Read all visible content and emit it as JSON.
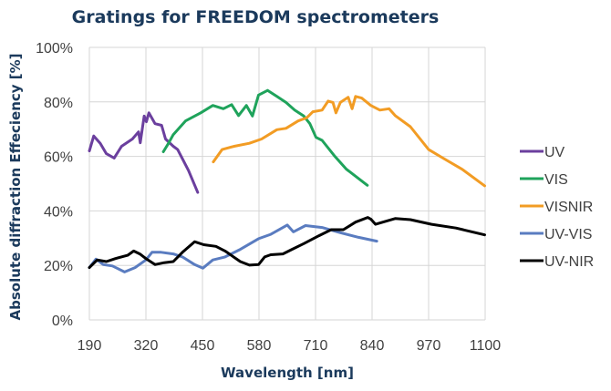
{
  "chart_data": {
    "type": "line",
    "title": "Gratings for FREEDOM spectrometers",
    "xlabel": "Wavelength [nm]",
    "ylabel": "Absolute diffraction Effeciency [%]",
    "xlim": [
      190,
      1100
    ],
    "ylim": [
      0,
      100
    ],
    "xticks": [
      "190",
      "320",
      "450",
      "580",
      "710",
      "840",
      "970",
      "1100"
    ],
    "yticks": [
      "0%",
      "20%",
      "40%",
      "60%",
      "80%",
      "100%"
    ],
    "grid": true,
    "legend_position": "right",
    "series": [
      {
        "name": "UV",
        "color": "#6b3f9e",
        "points": [
          [
            190,
            62
          ],
          [
            200,
            67.5
          ],
          [
            215,
            64.8
          ],
          [
            229,
            61
          ],
          [
            247,
            59.4
          ],
          [
            264,
            63.7
          ],
          [
            289,
            66.4
          ],
          [
            303,
            69
          ],
          [
            307,
            65
          ],
          [
            316,
            74.8
          ],
          [
            321,
            72.7
          ],
          [
            327,
            76
          ],
          [
            341,
            72
          ],
          [
            356,
            71.4
          ],
          [
            365,
            66.4
          ],
          [
            383,
            63.7
          ],
          [
            393,
            62.5
          ],
          [
            418,
            54.8
          ],
          [
            439,
            46.8
          ]
        ]
      },
      {
        "name": "VIS",
        "color": "#1fa35b",
        "points": [
          [
            360,
            61.7
          ],
          [
            372,
            64.8
          ],
          [
            383,
            68
          ],
          [
            411,
            73
          ],
          [
            446,
            76
          ],
          [
            474,
            78.7
          ],
          [
            498,
            77.5
          ],
          [
            517,
            79
          ],
          [
            533,
            75
          ],
          [
            551,
            78.7
          ],
          [
            565,
            74.8
          ],
          [
            579,
            82.5
          ],
          [
            600,
            84.2
          ],
          [
            621,
            82
          ],
          [
            642,
            79.8
          ],
          [
            662,
            77
          ],
          [
            683,
            74.8
          ],
          [
            697,
            72
          ],
          [
            711,
            67
          ],
          [
            725,
            65.9
          ],
          [
            753,
            60.3
          ],
          [
            781,
            55.3
          ],
          [
            829,
            49.4
          ]
        ]
      },
      {
        "name": "VISNIR",
        "color": "#f29c24",
        "points": [
          [
            475,
            58
          ],
          [
            495,
            62.5
          ],
          [
            523,
            63.7
          ],
          [
            558,
            64.8
          ],
          [
            586,
            66.4
          ],
          [
            621,
            69.8
          ],
          [
            642,
            70.3
          ],
          [
            670,
            73
          ],
          [
            690,
            74.2
          ],
          [
            704,
            76.4
          ],
          [
            725,
            77
          ],
          [
            739,
            80.3
          ],
          [
            750,
            79.8
          ],
          [
            757,
            76
          ],
          [
            767,
            79.8
          ],
          [
            785,
            81.7
          ],
          [
            794,
            77.5
          ],
          [
            802,
            82
          ],
          [
            816,
            81.4
          ],
          [
            837,
            78.7
          ],
          [
            858,
            77
          ],
          [
            879,
            77.5
          ],
          [
            893,
            75
          ],
          [
            928,
            70.9
          ],
          [
            970,
            62.5
          ],
          [
            1005,
            59.2
          ],
          [
            1047,
            55.3
          ],
          [
            1099,
            49.2
          ]
        ]
      },
      {
        "name": "UV-VIS",
        "color": "#5a7cc0",
        "points": [
          [
            190,
            19.2
          ],
          [
            205,
            22.3
          ],
          [
            222,
            20.3
          ],
          [
            243,
            19.8
          ],
          [
            271,
            17.6
          ],
          [
            295,
            19.2
          ],
          [
            320,
            22
          ],
          [
            334,
            24.8
          ],
          [
            355,
            24.8
          ],
          [
            383,
            24.2
          ],
          [
            404,
            23.1
          ],
          [
            432,
            20.3
          ],
          [
            451,
            19
          ],
          [
            474,
            22
          ],
          [
            502,
            23.1
          ],
          [
            537,
            25.9
          ],
          [
            579,
            29.8
          ],
          [
            607,
            31.4
          ],
          [
            645,
            34.8
          ],
          [
            659,
            32.3
          ],
          [
            687,
            34.6
          ],
          [
            725,
            33.9
          ],
          [
            767,
            32
          ],
          [
            809,
            30.3
          ],
          [
            851,
            28.9
          ]
        ]
      },
      {
        "name": "UV-NIR",
        "color": "#000000",
        "points": [
          [
            190,
            19.2
          ],
          [
            208,
            22
          ],
          [
            229,
            21.4
          ],
          [
            250,
            22.5
          ],
          [
            278,
            23.7
          ],
          [
            292,
            25.3
          ],
          [
            306,
            24.2
          ],
          [
            320,
            22.5
          ],
          [
            341,
            20.3
          ],
          [
            362,
            21
          ],
          [
            383,
            21.4
          ],
          [
            404,
            24.8
          ],
          [
            432,
            28.7
          ],
          [
            453,
            27.6
          ],
          [
            481,
            27
          ],
          [
            502,
            25.3
          ],
          [
            537,
            21.4
          ],
          [
            558,
            20.1
          ],
          [
            579,
            20.3
          ],
          [
            593,
            23.1
          ],
          [
            607,
            23.9
          ],
          [
            635,
            24.2
          ],
          [
            656,
            25.9
          ],
          [
            683,
            28
          ],
          [
            718,
            30.9
          ],
          [
            746,
            33.1
          ],
          [
            774,
            33.1
          ],
          [
            802,
            35.9
          ],
          [
            830,
            37.6
          ],
          [
            837,
            37
          ],
          [
            848,
            35.1
          ],
          [
            865,
            35.9
          ],
          [
            893,
            37.2
          ],
          [
            928,
            36.8
          ],
          [
            977,
            35.1
          ],
          [
            1033,
            33.7
          ],
          [
            1099,
            31.2
          ]
        ]
      }
    ]
  }
}
